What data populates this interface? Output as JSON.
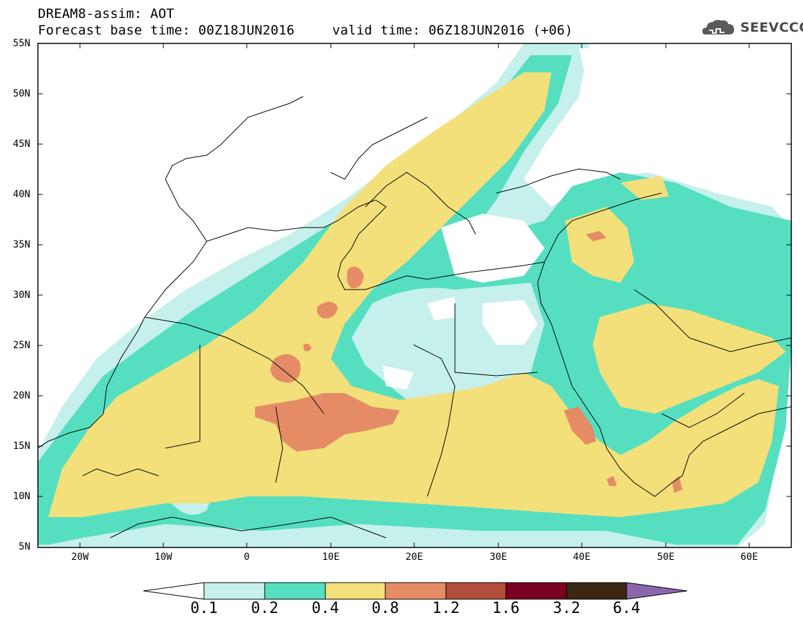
{
  "header": {
    "title": "DREAM8-assim: AOT",
    "base_time": "Forecast base time: 00Z18JUN2016",
    "valid_time": "valid time: 06Z18JUN2016 (+06)"
  },
  "logo": {
    "text": "SEEVCCC",
    "icon": "cloud-icon"
  },
  "map": {
    "lat_labels": [
      "55N",
      "50N",
      "45N",
      "40N",
      "35N",
      "30N",
      "25N",
      "20N",
      "15N",
      "10N",
      "5N"
    ],
    "lon_labels": [
      "20W",
      "10W",
      "0",
      "10E",
      "20E",
      "30E",
      "40E",
      "50E",
      "60E"
    ],
    "extent": {
      "lon": [
        -25,
        65
      ],
      "lat": [
        5,
        55
      ]
    }
  },
  "colorbar": {
    "labels": [
      "0.1",
      "0.2",
      "0.4",
      "0.8",
      "1.2",
      "1.6",
      "3.2",
      "6.4"
    ],
    "colors": [
      "#c5f0ec",
      "#55dfc0",
      "#f3e07a",
      "#e58c66",
      "#b24e3c",
      "#7a0020",
      "#3b2613",
      "#8b66ad"
    ],
    "under_color": "#ffffff"
  }
}
